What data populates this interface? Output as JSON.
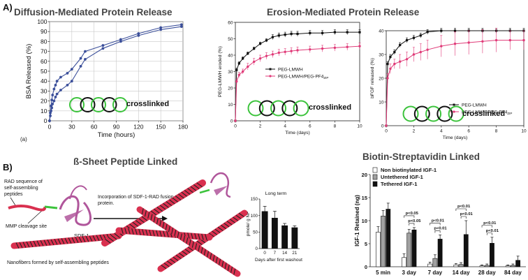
{
  "labels": {
    "panel_a": "A)",
    "panel_b": "B)",
    "sub_a": "(a)",
    "title_diffusion": "Diffusion-Mediated Protein Release",
    "title_erosion": "Erosion-Mediated Protein Release",
    "title_sheet": "ß-Sheet Peptide Linked",
    "title_biotin": "Biotin-Streptavidin Linked",
    "crosslinked": "crosslinked",
    "rad_sequence": [
      "RAD sequence of",
      "self-assembling",
      "peptides"
    ],
    "mmp_site": "MMP cleavage site",
    "sdf1": "SDF-1",
    "incorporation": [
      "Incorporation of SDF-1-RAD fusion",
      "protein."
    ],
    "nanofibers": "Nanofibers formed by self-assembling peptides"
  },
  "colors": {
    "black": "#111111",
    "pink": "#e03a78",
    "blue_line": "#3b4f9a",
    "gray_bar": "#a0a0a0",
    "green": "#3cc33c",
    "fiber_red": "#d9304f",
    "protein": "#b0569b"
  },
  "chart_data": [
    {
      "id": "bsa",
      "type": "line",
      "title": "",
      "xlabel": "Time (hours)",
      "ylabel": "BSA Released (%)",
      "xlim": [
        0,
        180
      ],
      "ylim": [
        0,
        100
      ],
      "xticks": [
        0,
        30,
        60,
        90,
        120,
        150,
        180
      ],
      "yticks": [
        0,
        10,
        20,
        30,
        40,
        50,
        60,
        70,
        80,
        90,
        100
      ],
      "series": [
        {
          "color": "#3b4f9a",
          "x": [
            0,
            1,
            2,
            3,
            4,
            6,
            8,
            10,
            15,
            24,
            30,
            42,
            48,
            72,
            96,
            120,
            150,
            178
          ],
          "y": [
            0,
            8,
            15,
            21,
            26,
            32,
            36,
            40,
            44,
            48,
            52,
            63,
            70,
            76,
            82,
            88,
            94,
            97
          ]
        },
        {
          "color": "#3b4f9a",
          "x": [
            0,
            1,
            2,
            3,
            4,
            6,
            8,
            10,
            15,
            24,
            30,
            42,
            48,
            72,
            96,
            120,
            150,
            178
          ],
          "y": [
            0,
            5,
            10,
            13,
            17,
            20,
            24,
            27,
            31,
            36,
            40,
            55,
            62,
            73,
            80,
            86,
            92,
            95
          ]
        }
      ]
    },
    {
      "id": "peg",
      "type": "line",
      "title": "",
      "xlabel": "Time (days)",
      "ylabel": "PEG-LMWH eroded (%)",
      "xlim": [
        0,
        10
      ],
      "ylim": [
        0,
        60
      ],
      "xticks": [
        0,
        2,
        4,
        6,
        8,
        10
      ],
      "yticks": [
        0,
        10,
        20,
        30,
        40,
        50,
        60
      ],
      "series": [
        {
          "name": "PEG-LMWH",
          "color": "#111111",
          "x": [
            0,
            0.1,
            0.3,
            0.6,
            1,
            1.5,
            2,
            2.5,
            3,
            3.5,
            4,
            4.5,
            5,
            6,
            7,
            8,
            9,
            10
          ],
          "y": [
            0,
            31,
            35,
            38,
            41,
            44,
            47,
            49,
            51,
            52,
            52.5,
            53,
            53,
            53.5,
            53.5,
            54,
            54,
            54
          ],
          "err": [
            0,
            1,
            1,
            1,
            1,
            1,
            1,
            1,
            1.5,
            1.5,
            1.5,
            1.5,
            1.5,
            1.5,
            1.5,
            1.5,
            1.5,
            1.5
          ]
        },
        {
          "name": "PEG-LMWH/PEG-PF4",
          "color": "#e03a78",
          "x": [
            0,
            0.1,
            0.3,
            0.6,
            1,
            1.5,
            2,
            2.5,
            3,
            3.5,
            4,
            4.5,
            5,
            6,
            7,
            8,
            9,
            10
          ],
          "y": [
            0,
            24,
            28,
            30,
            33,
            36,
            38,
            39.5,
            40.5,
            41.5,
            42,
            42.5,
            43,
            43.5,
            44,
            44.5,
            45,
            45.5
          ],
          "err": [
            0,
            1.5,
            1.5,
            1.5,
            2,
            2,
            2,
            2,
            2,
            2,
            2,
            2,
            2,
            2,
            2,
            2,
            2,
            2
          ]
        }
      ],
      "legend_pf4_subscript": "ZIP"
    },
    {
      "id": "bfgf",
      "type": "line",
      "title": "",
      "xlabel": "Time (days)",
      "ylabel": "bFGF released (%)",
      "xlim": [
        0,
        10
      ],
      "ylim": [
        0,
        40
      ],
      "xticks": [
        0,
        2,
        4,
        6,
        8,
        10
      ],
      "yticks": [
        0,
        10,
        20,
        30,
        40
      ],
      "series": [
        {
          "name": "PEG-LMWH",
          "color": "#111111",
          "x": [
            0,
            0.1,
            0.3,
            0.6,
            1,
            1.5,
            2,
            2.5,
            3,
            4,
            5,
            6,
            7,
            8,
            9,
            10
          ],
          "y": [
            0,
            26,
            29,
            31,
            34,
            36,
            37,
            38,
            39.5,
            40,
            40,
            40,
            40,
            40,
            40,
            40
          ],
          "err": [
            0,
            1,
            1,
            1,
            1,
            1,
            1,
            1,
            1,
            1,
            1,
            1,
            1,
            1,
            1,
            1
          ]
        },
        {
          "name": "PEG-LMWH/PEG-PF4",
          "color": "#e03a78",
          "x": [
            0,
            0.1,
            0.3,
            0.6,
            1,
            1.5,
            2,
            2.5,
            3,
            4,
            5,
            6,
            7,
            8,
            9,
            10
          ],
          "y": [
            0,
            20,
            24,
            26,
            27,
            28,
            30,
            31,
            32,
            33.5,
            34.5,
            35,
            35.5,
            36,
            36,
            36
          ],
          "err": [
            0,
            2,
            2,
            2,
            3,
            3,
            3,
            3.5,
            4,
            4.5,
            5,
            5,
            5,
            5,
            4,
            4
          ]
        }
      ],
      "legend_pf4_subscript": "ZIP"
    },
    {
      "id": "sdf",
      "type": "bar",
      "title": "Long term",
      "xlabel": "Days after first washout",
      "ylabel": "pmole/ g NF",
      "categories": [
        "0",
        "7",
        "14",
        "21"
      ],
      "values": [
        113,
        93,
        70,
        64
      ],
      "errors": [
        15,
        20,
        6,
        5
      ],
      "ylim": [
        0,
        150
      ],
      "yticks": [
        0,
        50,
        100,
        150
      ]
    },
    {
      "id": "igf",
      "type": "bar",
      "title": "",
      "xlabel": "",
      "ylabel": "IGF-1 Retained (ng)",
      "categories": [
        "5 min",
        "3 day",
        "7 day",
        "14 day",
        "28 day",
        "84 day"
      ],
      "ylim": [
        0,
        20
      ],
      "yticks": [
        0,
        5,
        10,
        15,
        20
      ],
      "series": [
        {
          "name": "Non biotinylated IGF-1",
          "color": "#ffffff",
          "values": [
            7.5,
            2.0,
            0.6,
            0.4,
            0.2,
            0.2
          ],
          "errors": [
            1.2,
            0.8,
            0.4,
            0.3,
            0.2,
            0.2
          ]
        },
        {
          "name": "Untethered IGF-1",
          "color": "#a0a0a0",
          "values": [
            11.0,
            7.3,
            1.8,
            0.5,
            0.3,
            0.3
          ],
          "errors": [
            1.2,
            0.8,
            0.8,
            0.4,
            0.3,
            0.3
          ]
        },
        {
          "name": "Tethered IGF-1",
          "color": "#111111",
          "values": [
            12.5,
            8.0,
            6.0,
            7.0,
            5.1,
            1.4
          ],
          "errors": [
            1.3,
            0.5,
            0.9,
            3.0,
            1.3,
            0.9
          ]
        }
      ],
      "significance": [
        {
          "category": 1,
          "from": 0,
          "to": 2,
          "label": "p<0.05"
        },
        {
          "category": 1,
          "from": 1,
          "to": 2,
          "label": "p<0.05"
        },
        {
          "category": 2,
          "from": 0,
          "to": 2,
          "label": "p<0.01"
        },
        {
          "category": 2,
          "from": 1,
          "to": 2,
          "label": "p<0.01"
        },
        {
          "category": 3,
          "from": 0,
          "to": 2,
          "label": "p<0.01"
        },
        {
          "category": 3,
          "from": 1,
          "to": 2,
          "label": "p<0.01"
        },
        {
          "category": 4,
          "from": 0,
          "to": 2,
          "label": "p<0.01"
        },
        {
          "category": 4,
          "from": 1,
          "to": 2,
          "label": "p<0.01"
        }
      ]
    }
  ]
}
